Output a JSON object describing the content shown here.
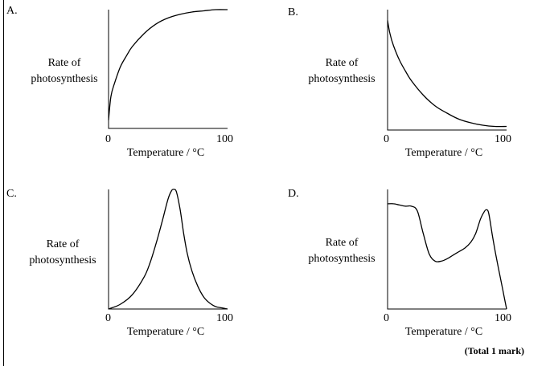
{
  "total": "(Total 1 mark)",
  "chart_data": [
    {
      "type": "line",
      "option": "A.",
      "ylabel": [
        "Rate of",
        "photosynthesis"
      ],
      "xlabel": "Temperature / °C",
      "x_ticks": [
        "0",
        "100"
      ],
      "xlim": [
        0,
        100
      ],
      "ylim": [
        0,
        1
      ],
      "series": [
        {
          "x": [
            0,
            2,
            5,
            10,
            15,
            20,
            30,
            40,
            50,
            60,
            70,
            80,
            90,
            100
          ],
          "y": [
            0.07,
            0.27,
            0.38,
            0.52,
            0.61,
            0.69,
            0.8,
            0.88,
            0.93,
            0.96,
            0.98,
            0.99,
            1.0,
            1.0
          ]
        }
      ]
    },
    {
      "type": "line",
      "option": "B.",
      "ylabel": [
        "Rate of",
        "photosynthesis"
      ],
      "xlabel": "Temperature / °C",
      "x_ticks": [
        "0",
        "100"
      ],
      "xlim": [
        0,
        100
      ],
      "ylim": [
        0,
        1
      ],
      "series": [
        {
          "x": [
            0,
            2,
            5,
            10,
            15,
            20,
            30,
            40,
            50,
            60,
            70,
            80,
            90,
            100
          ],
          "y": [
            0.91,
            0.8,
            0.7,
            0.58,
            0.49,
            0.41,
            0.29,
            0.2,
            0.14,
            0.09,
            0.06,
            0.04,
            0.03,
            0.03
          ]
        }
      ]
    },
    {
      "type": "line",
      "option": "C.",
      "ylabel": [
        "Rate of",
        "photosynthesis"
      ],
      "xlabel": "Temperature / °C",
      "x_ticks": [
        "0",
        "100"
      ],
      "xlim": [
        0,
        100
      ],
      "ylim": [
        0,
        1
      ],
      "series": [
        {
          "x": [
            0,
            10,
            20,
            30,
            35,
            40,
            45,
            50,
            53,
            55,
            57,
            60,
            63,
            66,
            70,
            75,
            80,
            85,
            90,
            95,
            100
          ],
          "y": [
            0.0,
            0.04,
            0.12,
            0.27,
            0.39,
            0.55,
            0.73,
            0.92,
            0.99,
            1.0,
            0.98,
            0.84,
            0.64,
            0.47,
            0.32,
            0.19,
            0.1,
            0.05,
            0.02,
            0.01,
            0.0
          ]
        }
      ]
    },
    {
      "type": "line",
      "option": "D.",
      "ylabel": [
        "Rate of",
        "photosynthesis"
      ],
      "xlabel": "Temperature / °C",
      "x_ticks": [
        "0",
        "100"
      ],
      "xlim": [
        0,
        100
      ],
      "ylim": [
        0,
        1
      ],
      "series": [
        {
          "x": [
            0,
            5,
            10,
            15,
            20,
            25,
            30,
            35,
            40,
            45,
            50,
            55,
            60,
            65,
            70,
            74,
            78,
            81,
            83,
            85,
            88,
            91,
            94,
            97,
            100
          ],
          "y": [
            0.88,
            0.88,
            0.87,
            0.86,
            0.86,
            0.82,
            0.63,
            0.46,
            0.4,
            0.4,
            0.42,
            0.45,
            0.48,
            0.51,
            0.56,
            0.63,
            0.75,
            0.81,
            0.83,
            0.8,
            0.62,
            0.45,
            0.3,
            0.15,
            0.0
          ]
        }
      ]
    }
  ]
}
